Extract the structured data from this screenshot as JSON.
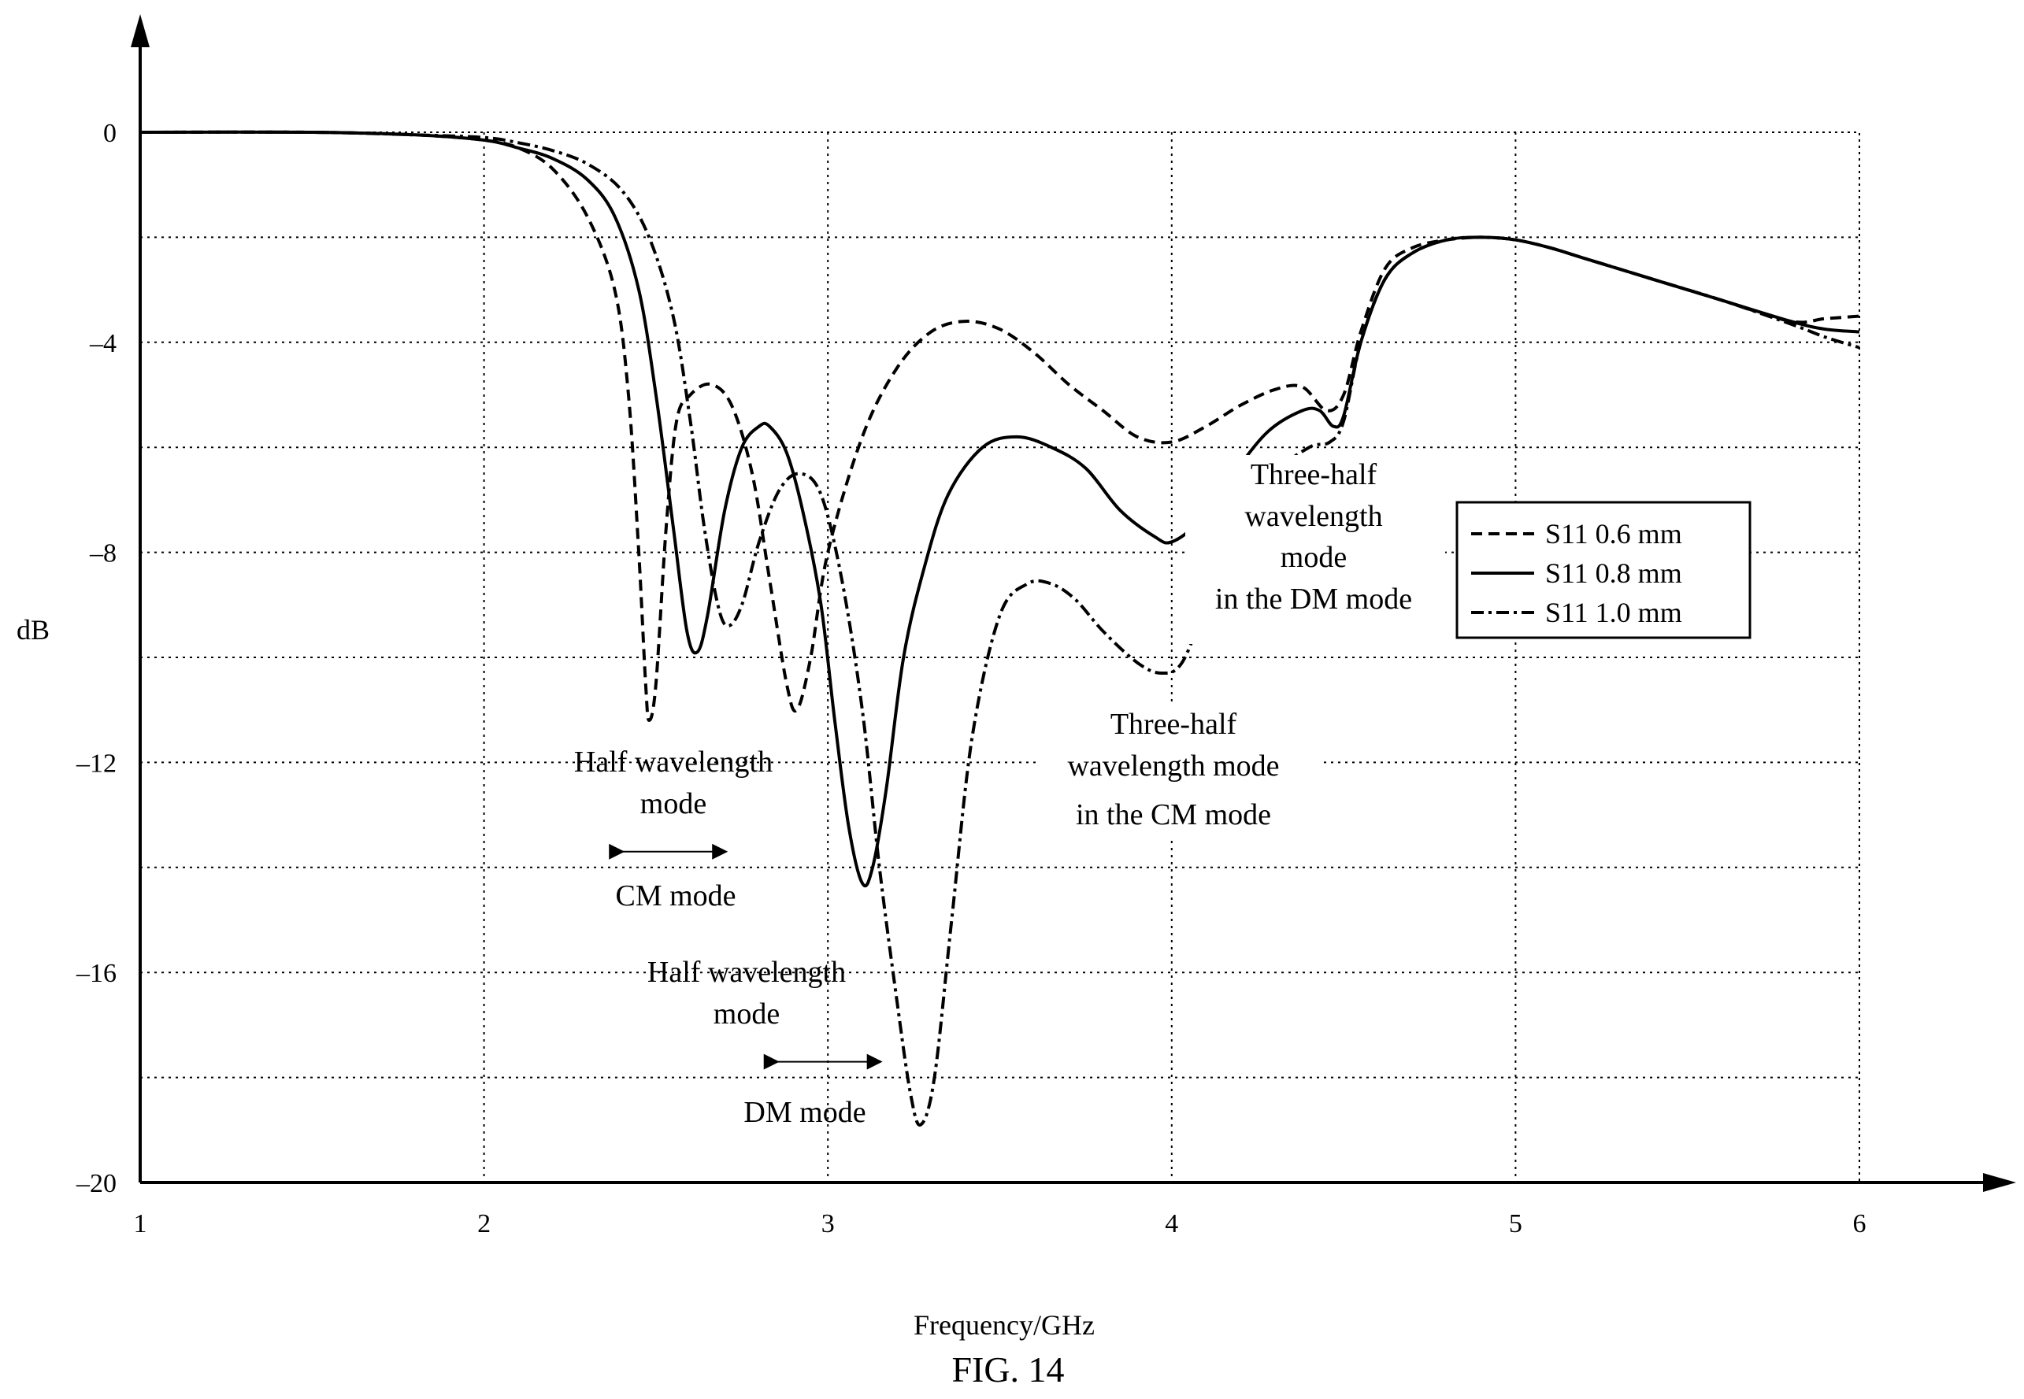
{
  "chart_data": {
    "type": "line",
    "xlabel": "Frequency/GHz",
    "ylabel": "dB",
    "xlim": [
      1,
      6
    ],
    "ylim": [
      -20,
      0
    ],
    "x_ticks": [
      1,
      2,
      3,
      4,
      5,
      6
    ],
    "y_ticks": [
      0,
      -4,
      -8,
      -12,
      -16,
      -20
    ],
    "y_tick_labels": [
      "0",
      "–4",
      "–8",
      "–12",
      "–16",
      "–20"
    ],
    "grid": true,
    "legend_position": "right",
    "series": [
      {
        "name": "S11 0.6 mm",
        "style": "dashed",
        "points": [
          [
            1,
            0
          ],
          [
            1.5,
            0
          ],
          [
            1.8,
            -0.05
          ],
          [
            2,
            -0.15
          ],
          [
            2.1,
            -0.3
          ],
          [
            2.2,
            -0.7
          ],
          [
            2.3,
            -1.6
          ],
          [
            2.38,
            -3.0
          ],
          [
            2.42,
            -5.0
          ],
          [
            2.45,
            -8.0
          ],
          [
            2.47,
            -10.5
          ],
          [
            2.48,
            -11.2
          ],
          [
            2.5,
            -10.5
          ],
          [
            2.53,
            -7.5
          ],
          [
            2.56,
            -5.5
          ],
          [
            2.6,
            -5.0
          ],
          [
            2.66,
            -4.8
          ],
          [
            2.72,
            -5.2
          ],
          [
            2.78,
            -6.5
          ],
          [
            2.83,
            -8.5
          ],
          [
            2.88,
            -10.5
          ],
          [
            2.91,
            -11.0
          ],
          [
            2.95,
            -10.0
          ],
          [
            3.0,
            -8.0
          ],
          [
            3.1,
            -5.8
          ],
          [
            3.2,
            -4.5
          ],
          [
            3.3,
            -3.8
          ],
          [
            3.4,
            -3.6
          ],
          [
            3.5,
            -3.75
          ],
          [
            3.6,
            -4.2
          ],
          [
            3.7,
            -4.8
          ],
          [
            3.8,
            -5.3
          ],
          [
            3.9,
            -5.8
          ],
          [
            4.0,
            -5.9
          ],
          [
            4.1,
            -5.6
          ],
          [
            4.2,
            -5.2
          ],
          [
            4.3,
            -4.9
          ],
          [
            4.38,
            -4.85
          ],
          [
            4.45,
            -5.3
          ],
          [
            4.5,
            -5.0
          ],
          [
            4.55,
            -3.8
          ],
          [
            4.62,
            -2.6
          ],
          [
            4.7,
            -2.2
          ],
          [
            4.8,
            -2.05
          ],
          [
            4.9,
            -2.0
          ],
          [
            5.0,
            -2.05
          ],
          [
            5.1,
            -2.2
          ],
          [
            5.2,
            -2.4
          ],
          [
            5.4,
            -2.8
          ],
          [
            5.6,
            -3.2
          ],
          [
            5.8,
            -3.6
          ],
          [
            5.9,
            -3.55
          ],
          [
            6.0,
            -3.5
          ]
        ]
      },
      {
        "name": "S11 0.8 mm",
        "style": "solid",
        "points": [
          [
            1,
            0
          ],
          [
            1.5,
            0
          ],
          [
            1.8,
            -0.05
          ],
          [
            2,
            -0.15
          ],
          [
            2.1,
            -0.3
          ],
          [
            2.2,
            -0.5
          ],
          [
            2.3,
            -0.9
          ],
          [
            2.38,
            -1.6
          ],
          [
            2.45,
            -3.0
          ],
          [
            2.5,
            -5.0
          ],
          [
            2.55,
            -7.5
          ],
          [
            2.59,
            -9.5
          ],
          [
            2.62,
            -9.9
          ],
          [
            2.65,
            -9.2
          ],
          [
            2.7,
            -7.2
          ],
          [
            2.75,
            -6.0
          ],
          [
            2.8,
            -5.6
          ],
          [
            2.83,
            -5.6
          ],
          [
            2.88,
            -6.1
          ],
          [
            2.93,
            -7.3
          ],
          [
            2.98,
            -9.0
          ],
          [
            3.02,
            -11.2
          ],
          [
            3.06,
            -13.2
          ],
          [
            3.1,
            -14.3
          ],
          [
            3.13,
            -14.0
          ],
          [
            3.17,
            -12.5
          ],
          [
            3.22,
            -10.0
          ],
          [
            3.28,
            -8.3
          ],
          [
            3.35,
            -6.9
          ],
          [
            3.45,
            -6.0
          ],
          [
            3.55,
            -5.8
          ],
          [
            3.65,
            -6.0
          ],
          [
            3.75,
            -6.4
          ],
          [
            3.85,
            -7.2
          ],
          [
            3.95,
            -7.7
          ],
          [
            4.0,
            -7.8
          ],
          [
            4.08,
            -7.4
          ],
          [
            4.18,
            -6.5
          ],
          [
            4.28,
            -5.7
          ],
          [
            4.38,
            -5.3
          ],
          [
            4.43,
            -5.3
          ],
          [
            4.47,
            -5.6
          ],
          [
            4.5,
            -5.4
          ],
          [
            4.55,
            -4.0
          ],
          [
            4.62,
            -2.8
          ],
          [
            4.7,
            -2.3
          ],
          [
            4.8,
            -2.05
          ],
          [
            4.9,
            -2.0
          ],
          [
            5.0,
            -2.05
          ],
          [
            5.1,
            -2.2
          ],
          [
            5.2,
            -2.4
          ],
          [
            5.4,
            -2.8
          ],
          [
            5.6,
            -3.2
          ],
          [
            5.8,
            -3.6
          ],
          [
            5.9,
            -3.75
          ],
          [
            6.0,
            -3.8
          ]
        ]
      },
      {
        "name": "S11 1.0 mm",
        "style": "dashdot",
        "points": [
          [
            1,
            0
          ],
          [
            1.5,
            0
          ],
          [
            1.8,
            -0.05
          ],
          [
            2,
            -0.1
          ],
          [
            2.1,
            -0.2
          ],
          [
            2.2,
            -0.35
          ],
          [
            2.3,
            -0.6
          ],
          [
            2.4,
            -1.1
          ],
          [
            2.48,
            -2.0
          ],
          [
            2.55,
            -3.5
          ],
          [
            2.6,
            -5.5
          ],
          [
            2.64,
            -7.5
          ],
          [
            2.68,
            -9.0
          ],
          [
            2.71,
            -9.4
          ],
          [
            2.75,
            -9.0
          ],
          [
            2.8,
            -7.8
          ],
          [
            2.86,
            -6.8
          ],
          [
            2.92,
            -6.5
          ],
          [
            2.98,
            -6.9
          ],
          [
            3.04,
            -8.5
          ],
          [
            3.1,
            -11.0
          ],
          [
            3.15,
            -14.0
          ],
          [
            3.2,
            -16.5
          ],
          [
            3.24,
            -18.3
          ],
          [
            3.27,
            -18.9
          ],
          [
            3.31,
            -18.0
          ],
          [
            3.36,
            -15.0
          ],
          [
            3.42,
            -11.5
          ],
          [
            3.5,
            -9.2
          ],
          [
            3.58,
            -8.6
          ],
          [
            3.65,
            -8.6
          ],
          [
            3.72,
            -8.9
          ],
          [
            3.8,
            -9.5
          ],
          [
            3.9,
            -10.1
          ],
          [
            3.97,
            -10.3
          ],
          [
            4.03,
            -10.1
          ],
          [
            4.1,
            -9.0
          ],
          [
            4.2,
            -7.5
          ],
          [
            4.3,
            -6.5
          ],
          [
            4.4,
            -6.0
          ],
          [
            4.46,
            -5.9
          ],
          [
            4.5,
            -5.5
          ],
          [
            4.55,
            -4.0
          ],
          [
            4.62,
            -2.8
          ],
          [
            4.7,
            -2.3
          ],
          [
            4.8,
            -2.05
          ],
          [
            4.9,
            -2.0
          ],
          [
            5.0,
            -2.05
          ],
          [
            5.1,
            -2.2
          ],
          [
            5.2,
            -2.4
          ],
          [
            5.4,
            -2.8
          ],
          [
            5.6,
            -3.2
          ],
          [
            5.8,
            -3.65
          ],
          [
            5.9,
            -3.9
          ],
          [
            6.0,
            -4.1
          ]
        ]
      }
    ],
    "annotations": [
      {
        "lines": [
          "Half wavelength",
          "mode"
        ],
        "arrow_span": [
          2.4,
          2.7
        ],
        "arrow_y": -13.7,
        "below": "CM mode"
      },
      {
        "lines": [
          "Half wavelength",
          "mode"
        ],
        "arrow_span": [
          2.85,
          3.15
        ],
        "arrow_y": -17.7,
        "below": "DM mode"
      },
      {
        "lines": [
          "Three-half",
          "wavelength mode",
          "in the CM mode"
        ]
      },
      {
        "lines": [
          "Three-half",
          "wavelength",
          "mode",
          "in the DM mode"
        ]
      }
    ]
  },
  "caption": "FIG. 14",
  "colors": {
    "ink": "#000000",
    "grid": "#000000",
    "background": "#ffffff"
  }
}
